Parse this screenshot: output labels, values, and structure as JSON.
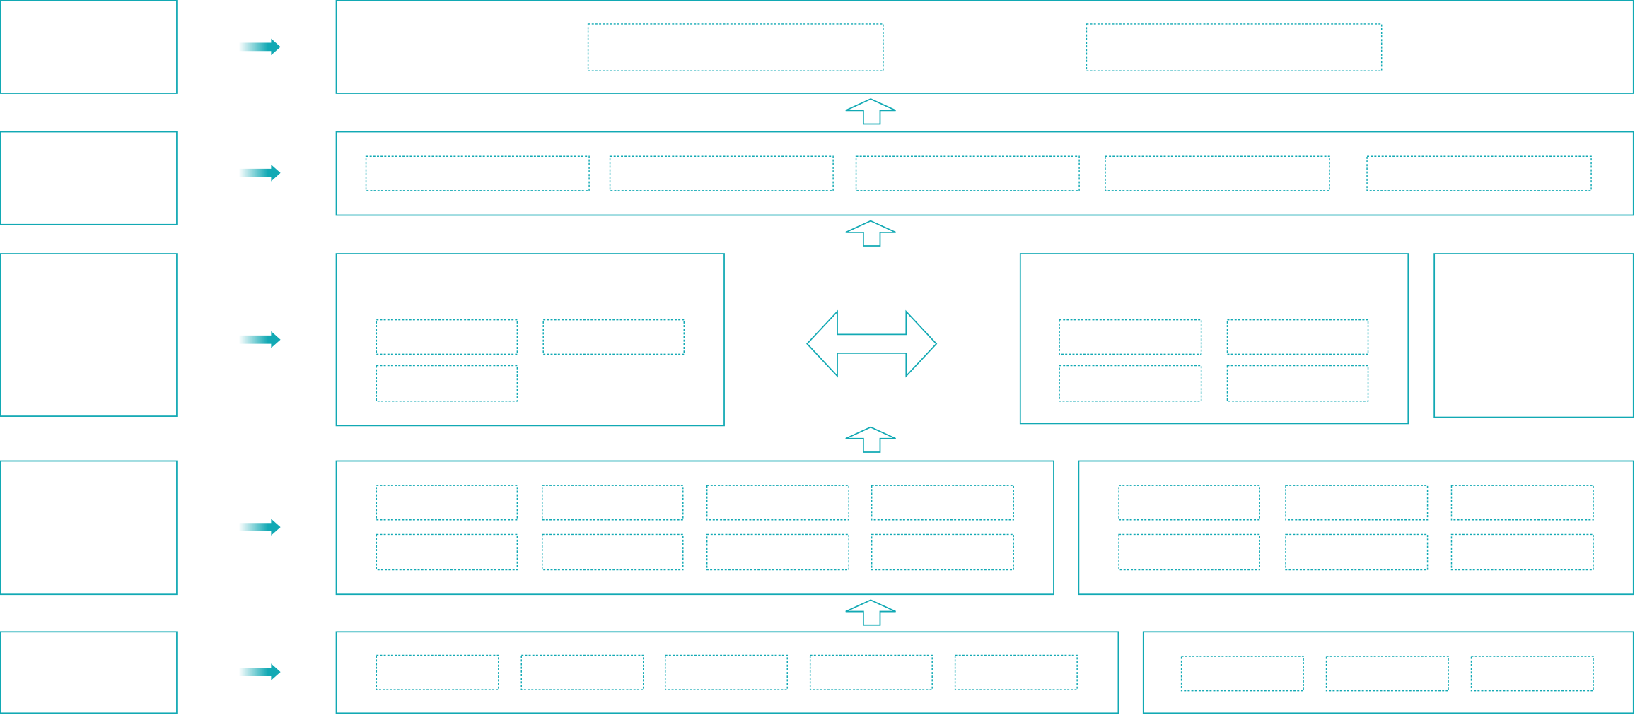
{
  "diagram": {
    "type": "layered-architecture-blank",
    "colors": {
      "stroke": "#12a9b4",
      "background": "#ffffff"
    },
    "icons": {
      "side_arrow": "right-arrow-gradient-icon",
      "layer_arrow": "up-arrow-outline-icon",
      "exchange_arrow": "double-headed-arrow-icon"
    }
  }
}
